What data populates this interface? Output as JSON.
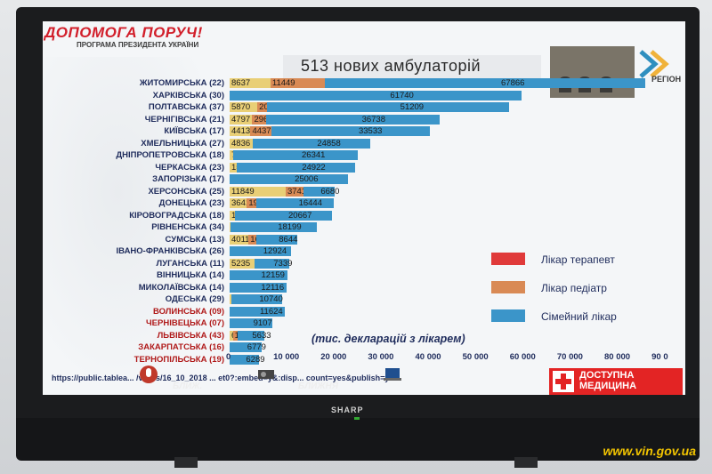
{
  "header": {
    "title": "ДОПОМОГА ПОРУЧ!",
    "subtitle": "ПРОГРАМА ПРЕЗИДЕНТА УКРАЇНИ",
    "headline": "513 нових амбулаторій",
    "logo_text": "РЕГІОН"
  },
  "tv": {
    "brand": "SHARP"
  },
  "legend": [
    {
      "label": "Лікар терапевт",
      "color": "#e03a3a"
    },
    {
      "label": "Лікар педіатр",
      "color": "#d98a55"
    },
    {
      "label": "Сімейний лікар",
      "color": "#3b95c9"
    }
  ],
  "note": "(тис. декларацій з лікарем)",
  "axis_ticks": [
    "0",
    "10 000",
    "20 000",
    "30 000",
    "40 000",
    "50 000",
    "60 000",
    "70 000",
    "80 000",
    "90 0"
  ],
  "footer": {
    "url": "https://public.tablea... /views/16_10_2018 ... et0?:embed=y&:disp... count=yes&publish=yes",
    "cap1": "БЛИЖ.",
    "cap2": "БЛИЖНЯ",
    "logo_line1": "ДОСТУПНА",
    "logo_line2": "МЕДИЦИНА"
  },
  "watermark": "www.vin.gov.ua",
  "chart_data": {
    "type": "bar",
    "categories": [
      "ЖИТОМИРСЬКА (22)",
      "ХАРКІВСЬКА (30)",
      "ПОЛТАВСЬКА (37)",
      "ЧЕРНІГІВСЬКА (21)",
      "КИЇВСЬКА (17)",
      "ХМЕЛЬНИЦЬКА (27)",
      "ДНІПРОПЕТРОВСЬКА (18)",
      "ЧЕРКАСЬКА (23)",
      "ЗАПОРІЗЬКА (17)",
      "ХЕРСОНСЬКА (25)",
      "ДОНЕЦЬКА (23)",
      "КІРОВОГРАДСЬКА (18)",
      "РІВНЕНСЬКА (34)",
      "СУМСЬКА (13)",
      "ІВАНО-ФРАНКІВСЬКА (26)",
      "ЛУГАНСЬКА (11)",
      "ВІННИЦЬКА (14)",
      "МИКОЛАЇВСЬКА (14)",
      "ОДЕСЬКА (29)",
      "ВОЛИНСЬКА (09)",
      "ЧЕРНІВЕЦЬКА (07)",
      "ЛЬВІВСЬКА (43)",
      "ЗАКАРПАТСЬКА (16)",
      "ТЕРНОПІЛЬСЬКА (19)"
    ],
    "red_categories": [
      "ВОЛИНСЬКА (09)",
      "ЧЕРНІВЕЦЬКА (07)",
      "ЛЬВІВСЬКА (43)",
      "ЗАКАРПАТСЬКА (16)",
      "ТЕРНОПІЛЬСЬКА (19)"
    ],
    "series": [
      {
        "name": "Лікар терапевт",
        "values": [
          8637,
          0,
          5870,
          4797,
          4413,
          4836,
          760,
          1582,
          0,
          11849,
          3641,
          1062,
          194,
          4011,
          0,
          5235,
          0,
          0,
          380,
          0,
          0,
          680,
          0,
          0
        ]
      },
      {
        "name": "Лікар педіатр",
        "values": [
          11449,
          0,
          2042,
          2964,
          4437,
          0,
          0,
          0,
          0,
          3741,
          1918,
          0,
          0,
          1639,
          0,
          0,
          0,
          0,
          0,
          0,
          0,
          1000,
          0,
          0
        ]
      },
      {
        "name": "Сімейний лікар",
        "values": [
          67866,
          61740,
          51209,
          36738,
          33533,
          24858,
          26341,
          24922,
          25006,
          6680,
          16444,
          20667,
          18199,
          8644,
          12924,
          7339,
          12159,
          12116,
          10740,
          11624,
          9107,
          5633,
          6779,
          6289
        ]
      }
    ],
    "xlim": [
      0,
      90000
    ]
  }
}
